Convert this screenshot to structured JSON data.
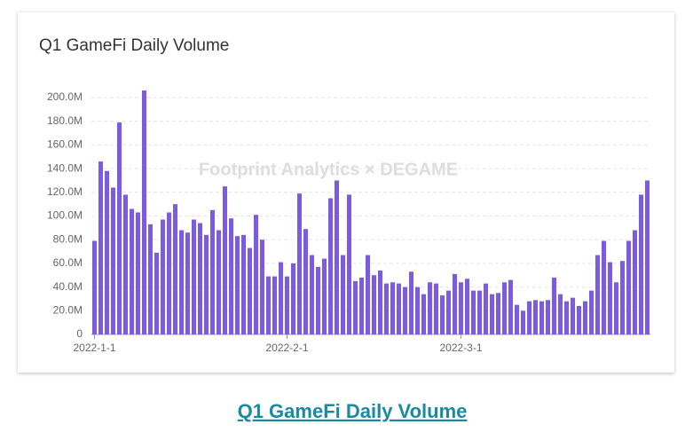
{
  "chart_data": {
    "type": "bar",
    "title": "Q1 GameFi Daily Volume",
    "watermark": "Footprint Analytics  ×  DEGAME",
    "categories": [
      "2022-1-1",
      null,
      null,
      null,
      null,
      null,
      null,
      null,
      null,
      null,
      null,
      null,
      null,
      null,
      null,
      null,
      null,
      null,
      null,
      null,
      null,
      null,
      null,
      null,
      null,
      null,
      null,
      null,
      null,
      null,
      null,
      "2022-2-1",
      null,
      null,
      null,
      null,
      null,
      null,
      null,
      null,
      null,
      null,
      null,
      null,
      null,
      null,
      null,
      null,
      null,
      null,
      null,
      null,
      null,
      null,
      null,
      null,
      null,
      null,
      null,
      "2022-3-1",
      null,
      null,
      null,
      null,
      null,
      null,
      null,
      null,
      null,
      null,
      null,
      null,
      null,
      null,
      null,
      null,
      null,
      null,
      null,
      null,
      null,
      null,
      null,
      null,
      null,
      null,
      null,
      null,
      null,
      null
    ],
    "values": [
      79,
      146,
      138,
      124,
      179,
      118,
      106,
      103,
      206,
      93,
      69,
      97,
      103,
      110,
      88,
      86,
      97,
      94,
      84,
      105,
      88,
      125,
      98,
      83,
      84,
      73,
      101,
      80,
      49,
      49,
      61,
      49,
      60,
      119,
      89,
      67,
      57,
      64,
      115,
      130,
      67,
      118,
      45,
      48,
      67,
      50,
      54,
      43,
      44,
      43,
      40,
      53,
      40,
      34,
      44,
      43,
      33,
      37,
      51,
      44,
      47,
      37,
      37,
      43,
      34,
      35,
      44,
      46,
      25,
      20,
      28,
      29,
      28,
      29,
      48,
      34,
      28,
      31,
      24,
      28,
      37,
      67,
      79,
      61,
      44,
      62,
      79,
      88,
      118,
      130
    ],
    "color": "#7b5ce0",
    "ylim": [
      0,
      200
    ],
    "yticks": [
      {
        "value": 0,
        "label": "0"
      },
      {
        "value": 20,
        "label": "20.0M"
      },
      {
        "value": 40,
        "label": "40.0M"
      },
      {
        "value": 60,
        "label": "60.0M"
      },
      {
        "value": 80,
        "label": "80.0M"
      },
      {
        "value": 100,
        "label": "100.0M"
      },
      {
        "value": 120,
        "label": "120.0M"
      },
      {
        "value": 140,
        "label": "140.0M"
      },
      {
        "value": 160,
        "label": "160.0M"
      },
      {
        "value": 180,
        "label": "180.0M"
      },
      {
        "value": 200,
        "label": "200.0M"
      }
    ],
    "grid": true
  },
  "caption": "Q1 GameFi Daily Volume"
}
